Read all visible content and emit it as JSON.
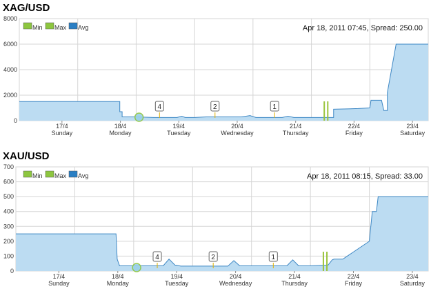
{
  "chart_data": [
    {
      "type": "area",
      "title": "XAG/USD",
      "legend": [
        "Min",
        "Max",
        "Avg"
      ],
      "legend_placement": "top-left",
      "annotation": "Apr 18, 2011 07:45, Spread: 250.00",
      "ylim": [
        0,
        8000
      ],
      "yticks": [
        "0",
        "2000",
        "4000",
        "6000",
        "8000"
      ],
      "grid": true,
      "x_range": [
        0,
        7
      ],
      "xticks": [
        {
          "date": "17/4",
          "day": "Sunday"
        },
        {
          "date": "18/4",
          "day": "Monday"
        },
        {
          "date": "19/4",
          "day": "Tuesday"
        },
        {
          "date": "20/4",
          "day": "Wednesday"
        },
        {
          "date": "21/4",
          "day": "Thursday"
        },
        {
          "date": "22/4",
          "day": "Friday"
        },
        {
          "date": "23/4",
          "day": "Saturday"
        }
      ],
      "x": [
        0,
        1.72,
        1.72,
        1.76,
        1.76,
        2.0,
        2.3,
        2.7,
        2.78,
        2.84,
        3.0,
        3.2,
        3.8,
        3.95,
        4.05,
        4.5,
        4.6,
        4.7,
        5.2,
        5.38,
        5.38,
        5.8,
        6.0,
        6.02,
        6.2,
        6.24,
        6.3,
        6.3,
        6.45,
        7
      ],
      "values": [
        1500,
        1500,
        700,
        700,
        300,
        300,
        250,
        250,
        350,
        250,
        250,
        300,
        300,
        400,
        250,
        250,
        350,
        250,
        250,
        250,
        900,
        950,
        1000,
        1600,
        1600,
        800,
        800,
        2200,
        6000,
        6000
      ],
      "markers": [
        {
          "label": "4",
          "x": 2.4
        },
        {
          "label": "2",
          "x": 3.35
        },
        {
          "label": "1",
          "x": 4.37
        }
      ],
      "highlight_x": 2.05,
      "spike_x": [
        5.22,
        5.28
      ]
    },
    {
      "type": "area",
      "title": "XAU/USD",
      "legend": [
        "Min",
        "Max",
        "Avg"
      ],
      "legend_placement": "top-left",
      "annotation": "Apr 18, 2011 08:15, Spread: 33.00",
      "ylim": [
        0,
        700
      ],
      "yticks": [
        "0",
        "100",
        "200",
        "300",
        "400",
        "500",
        "600",
        "700"
      ],
      "grid": true,
      "x_range": [
        0,
        7
      ],
      "xticks": [
        {
          "date": "17/4",
          "day": "Sunday"
        },
        {
          "date": "18/4",
          "day": "Monday"
        },
        {
          "date": "19/4",
          "day": "Tuesday"
        },
        {
          "date": "20/4",
          "day": "Wednesday"
        },
        {
          "date": "21/4",
          "day": "Thursday"
        },
        {
          "date": "22/4",
          "day": "Friday"
        },
        {
          "date": "23/4",
          "day": "Saturday"
        }
      ],
      "x": [
        0,
        1.7,
        1.72,
        1.76,
        2.5,
        2.6,
        2.7,
        2.8,
        3.6,
        3.7,
        3.8,
        4.6,
        4.7,
        4.8,
        5.0,
        5.3,
        5.37,
        5.4,
        5.5,
        5.55,
        6.0,
        6.05,
        6.12,
        6.15,
        7
      ],
      "values": [
        250,
        250,
        80,
        35,
        35,
        80,
        40,
        33,
        33,
        70,
        35,
        35,
        75,
        35,
        35,
        40,
        75,
        80,
        80,
        80,
        200,
        400,
        400,
        500,
        500
      ],
      "markers": [
        {
          "label": "4",
          "x": 2.4
        },
        {
          "label": "2",
          "x": 3.35
        },
        {
          "label": "1",
          "x": 4.37
        }
      ],
      "highlight_x": 2.05,
      "spike_x": [
        5.22,
        5.28
      ]
    }
  ]
}
